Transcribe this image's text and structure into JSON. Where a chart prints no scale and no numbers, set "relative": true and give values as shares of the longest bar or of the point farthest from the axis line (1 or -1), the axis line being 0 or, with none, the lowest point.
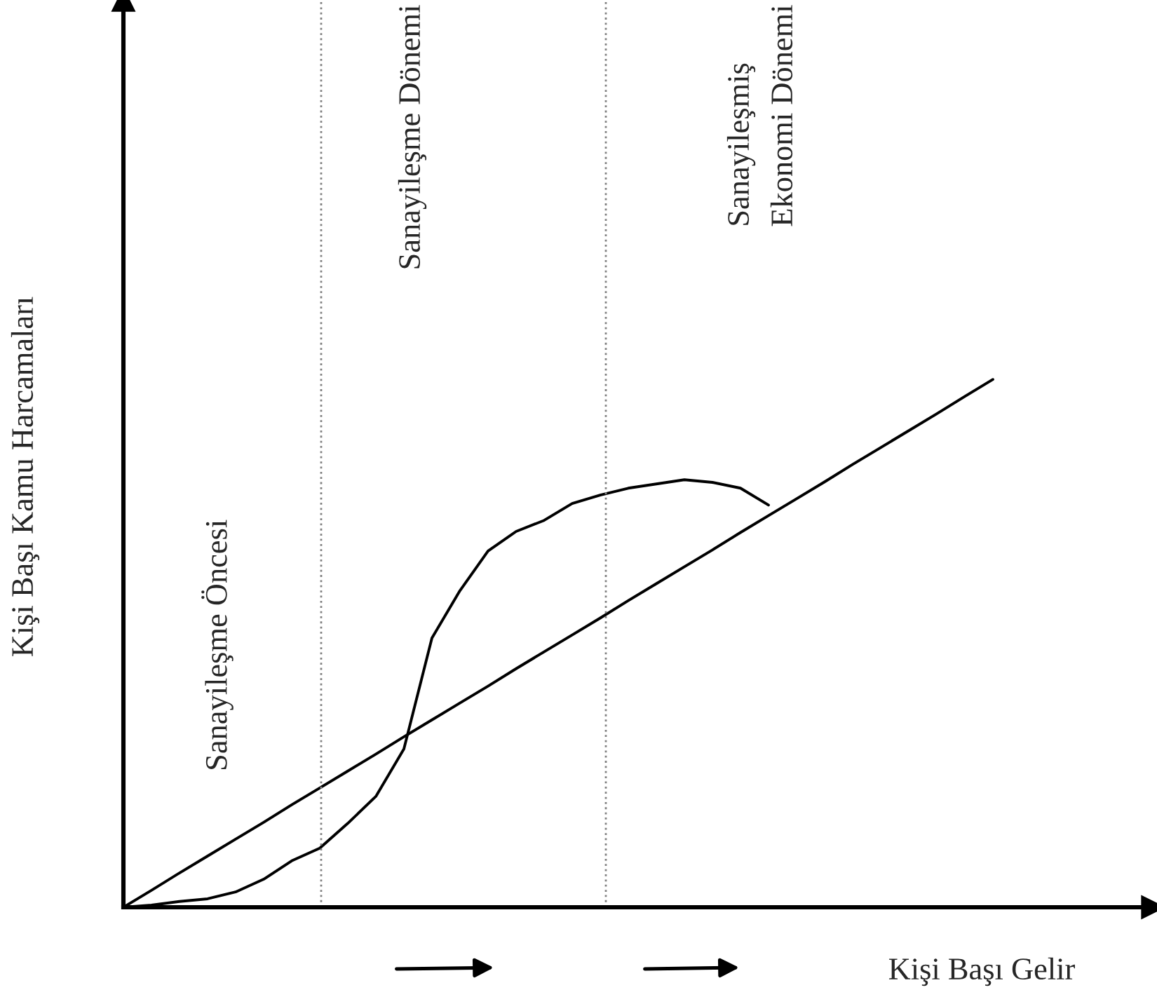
{
  "chart_data": {
    "type": "line",
    "relative": true,
    "xlabel": "Kişi Başı Gelir",
    "ylabel": "Kişi Başı Kamu Harcamaları",
    "categories": [
      null,
      null,
      null,
      null,
      null,
      null,
      null,
      null,
      null,
      null,
      null,
      null,
      null,
      null,
      null,
      null,
      null,
      null,
      null,
      null,
      null,
      null,
      null,
      null,
      null,
      null,
      null,
      null,
      null,
      null,
      null,
      null
    ],
    "series": [
      {
        "color": "#000000",
        "values": [
          0,
          0.032,
          0.065,
          0.097,
          0.129,
          0.161,
          0.194,
          0.226,
          0.258,
          0.29,
          0.323,
          0.355,
          0.387,
          0.419,
          0.452,
          0.484,
          0.516,
          0.548,
          0.581,
          0.613,
          0.645,
          0.677,
          0.71,
          0.742,
          0.774,
          0.806,
          0.839,
          0.871,
          0.903,
          0.935,
          0.968,
          1
        ]
      },
      {
        "color": "#000000",
        "values": [
          0,
          0.004,
          0.011,
          0.016,
          0.029,
          0.053,
          0.088,
          0.112,
          0.159,
          0.21,
          0.3,
          0.51,
          0.6,
          0.675,
          0.712,
          0.733,
          0.765,
          0.781,
          0.794,
          0.802,
          0.81,
          0.805,
          0.794,
          0.762,
          null,
          null,
          null,
          null,
          null,
          null,
          null,
          null
        ]
      }
    ],
    "annotations": [
      "Sanayileşme Öncesi",
      "Sanayileşme Dönemi",
      "Sanayileşmiş\nEkonomi Dönemi"
    ]
  }
}
